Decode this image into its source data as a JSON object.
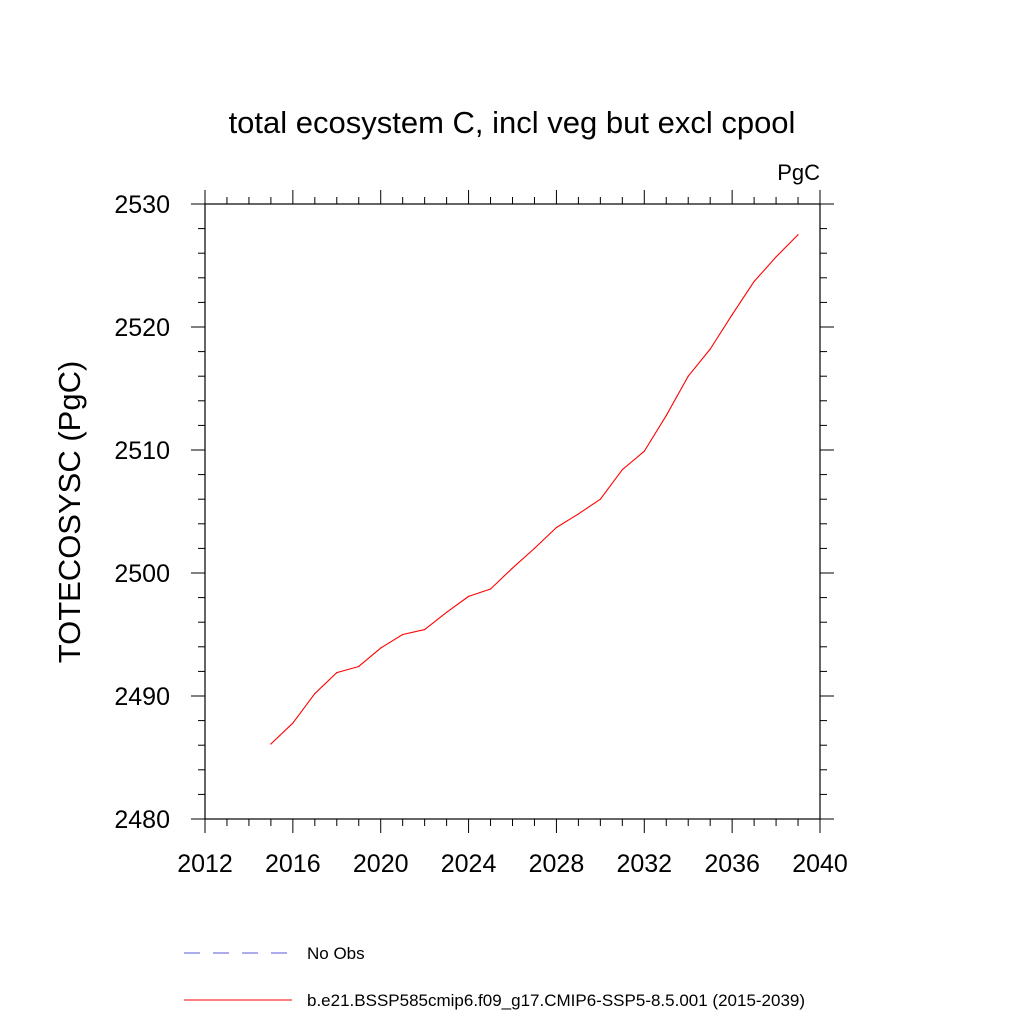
{
  "chart_data": {
    "type": "line",
    "title": "total ecosystem C, incl veg but excl cpool",
    "units_label": "PgC",
    "ylabel": "TOTECOSYSC  (PgC)",
    "xlabel": "",
    "xlim": [
      2012,
      2040
    ],
    "ylim": [
      2480,
      2530
    ],
    "xticks": [
      2012,
      2016,
      2020,
      2024,
      2028,
      2032,
      2036,
      2040
    ],
    "yticks": [
      2480,
      2490,
      2500,
      2510,
      2520,
      2530
    ],
    "grid": false,
    "legend_position": "bottom",
    "series": [
      {
        "name": "b.e21.BSSP585cmip6.f09_g17.CMIP6-SSP5-8.5.001 (2015-2039)",
        "color": "#ff0000",
        "style": "solid",
        "x": [
          2015,
          2016,
          2017,
          2018,
          2019,
          2020,
          2021,
          2022,
          2023,
          2024,
          2025,
          2026,
          2027,
          2028,
          2029,
          2030,
          2031,
          2032,
          2033,
          2034,
          2035,
          2036,
          2037,
          2038,
          2039
        ],
        "y": [
          2486.1,
          2487.8,
          2490.2,
          2491.9,
          2492.4,
          2493.9,
          2495.0,
          2495.4,
          2496.8,
          2498.1,
          2498.7,
          2500.4,
          2502.0,
          2503.7,
          2504.8,
          2506.0,
          2508.4,
          2509.9,
          2512.8,
          2516.0,
          2518.2,
          2521.0,
          2523.7,
          2525.7,
          2527.5
        ]
      }
    ],
    "legend": [
      {
        "label": "No Obs",
        "color": "#5a5ad8",
        "style": "dashed"
      },
      {
        "label": "b.e21.BSSP585cmip6.f09_g17.CMIP6-SSP5-8.5.001 (2015-2039)",
        "color": "#ff0000",
        "style": "solid"
      }
    ]
  }
}
